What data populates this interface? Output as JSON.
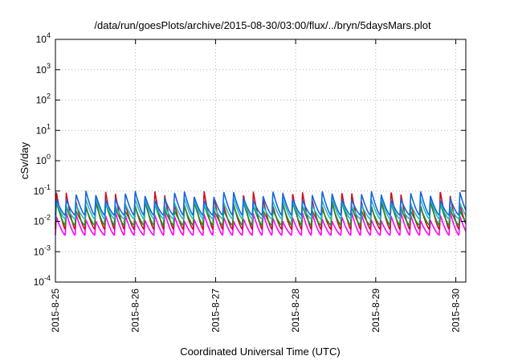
{
  "chart_data": {
    "type": "line",
    "title": "/data/run/goesPlots/archive/2015-08-30/03:00/flux/../bryn/5daysMars.plot",
    "xlabel": "Coordinated Universal Time (UTC)",
    "ylabel": "cSv/day",
    "yscale": "log",
    "ylim": [
      0.0001,
      10000
    ],
    "xlim": [
      "2015-08-25 00:00",
      "2015-08-30 03:00"
    ],
    "grid": true,
    "y_ticks": [
      {
        "value": 0.0001,
        "base": "10",
        "exp": "-4"
      },
      {
        "value": 0.001,
        "base": "10",
        "exp": "-3"
      },
      {
        "value": 0.01,
        "base": "10",
        "exp": "-2"
      },
      {
        "value": 0.1,
        "base": "10",
        "exp": "-1"
      },
      {
        "value": 1,
        "base": "10",
        "exp": "0"
      },
      {
        "value": 10,
        "base": "10",
        "exp": "1"
      },
      {
        "value": 100,
        "base": "10",
        "exp": "2"
      },
      {
        "value": 1000,
        "base": "10",
        "exp": "3"
      },
      {
        "value": 10000,
        "base": "10",
        "exp": "4"
      }
    ],
    "x_ticks": [
      "2015-8-25",
      "2015-8-26",
      "2015-8-27",
      "2015-8-28",
      "2015-8-29",
      "2015-8-30"
    ],
    "sawtooth_period_hours": 2.95,
    "series": [
      {
        "color": "#ff00ff",
        "min": 0.0035,
        "max": 0.02
      },
      {
        "color": "#cc1020",
        "min": 0.0055,
        "max": 0.1
      },
      {
        "color": "#228b22",
        "min": 0.0075,
        "max": 0.045
      },
      {
        "color": "#20c0c0",
        "min": 0.012,
        "max": 0.06
      },
      {
        "color": "#1565e0",
        "min": 0.016,
        "max": 0.1
      }
    ]
  }
}
